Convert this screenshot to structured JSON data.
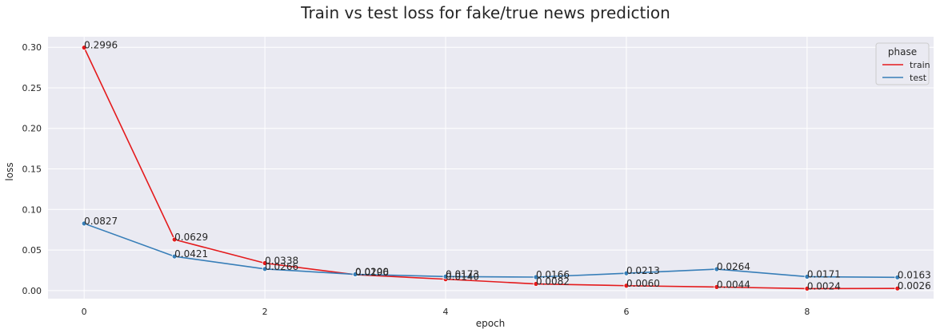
{
  "chart_data": {
    "type": "line",
    "title": "Train vs test loss for fake/true news prediction",
    "xlabel": "epoch",
    "ylabel": "loss",
    "x": [
      0,
      1,
      2,
      3,
      4,
      5,
      6,
      7,
      8,
      9
    ],
    "xlim": [
      -0.4,
      9.4
    ],
    "ylim": [
      -0.01,
      0.313
    ],
    "xticks": [
      "0",
      "2",
      "4",
      "6",
      "8"
    ],
    "yticks": [
      "0.00",
      "0.05",
      "0.10",
      "0.15",
      "0.20",
      "0.25",
      "0.30"
    ],
    "grid": true,
    "legend": {
      "title": "phase",
      "placement": "top-right"
    },
    "colors": {
      "background": "#eaeaf2",
      "grid": "#ffffff"
    },
    "series": [
      {
        "name": "train",
        "color": "#e41a1c",
        "values": [
          0.2996,
          0.0629,
          0.0338,
          0.0196,
          0.014,
          0.0082,
          0.006,
          0.0044,
          0.0024,
          0.0026
        ],
        "labels": [
          "0.2996",
          "0.0629",
          "0.0338",
          "0.0196",
          "0.0140",
          "0.0082",
          "0.0060",
          "0.0044",
          "0.0024",
          "0.0026"
        ]
      },
      {
        "name": "test",
        "color": "#377eb8",
        "values": [
          0.0827,
          0.0421,
          0.0266,
          0.02,
          0.0173,
          0.0166,
          0.0213,
          0.0264,
          0.0171,
          0.0163
        ],
        "labels": [
          "0.0827",
          "0.0421",
          "0.0266",
          "0.0200",
          "0.0173",
          "0.0166",
          "0.0213",
          "0.0264",
          "0.0171",
          "0.0163"
        ]
      }
    ]
  }
}
